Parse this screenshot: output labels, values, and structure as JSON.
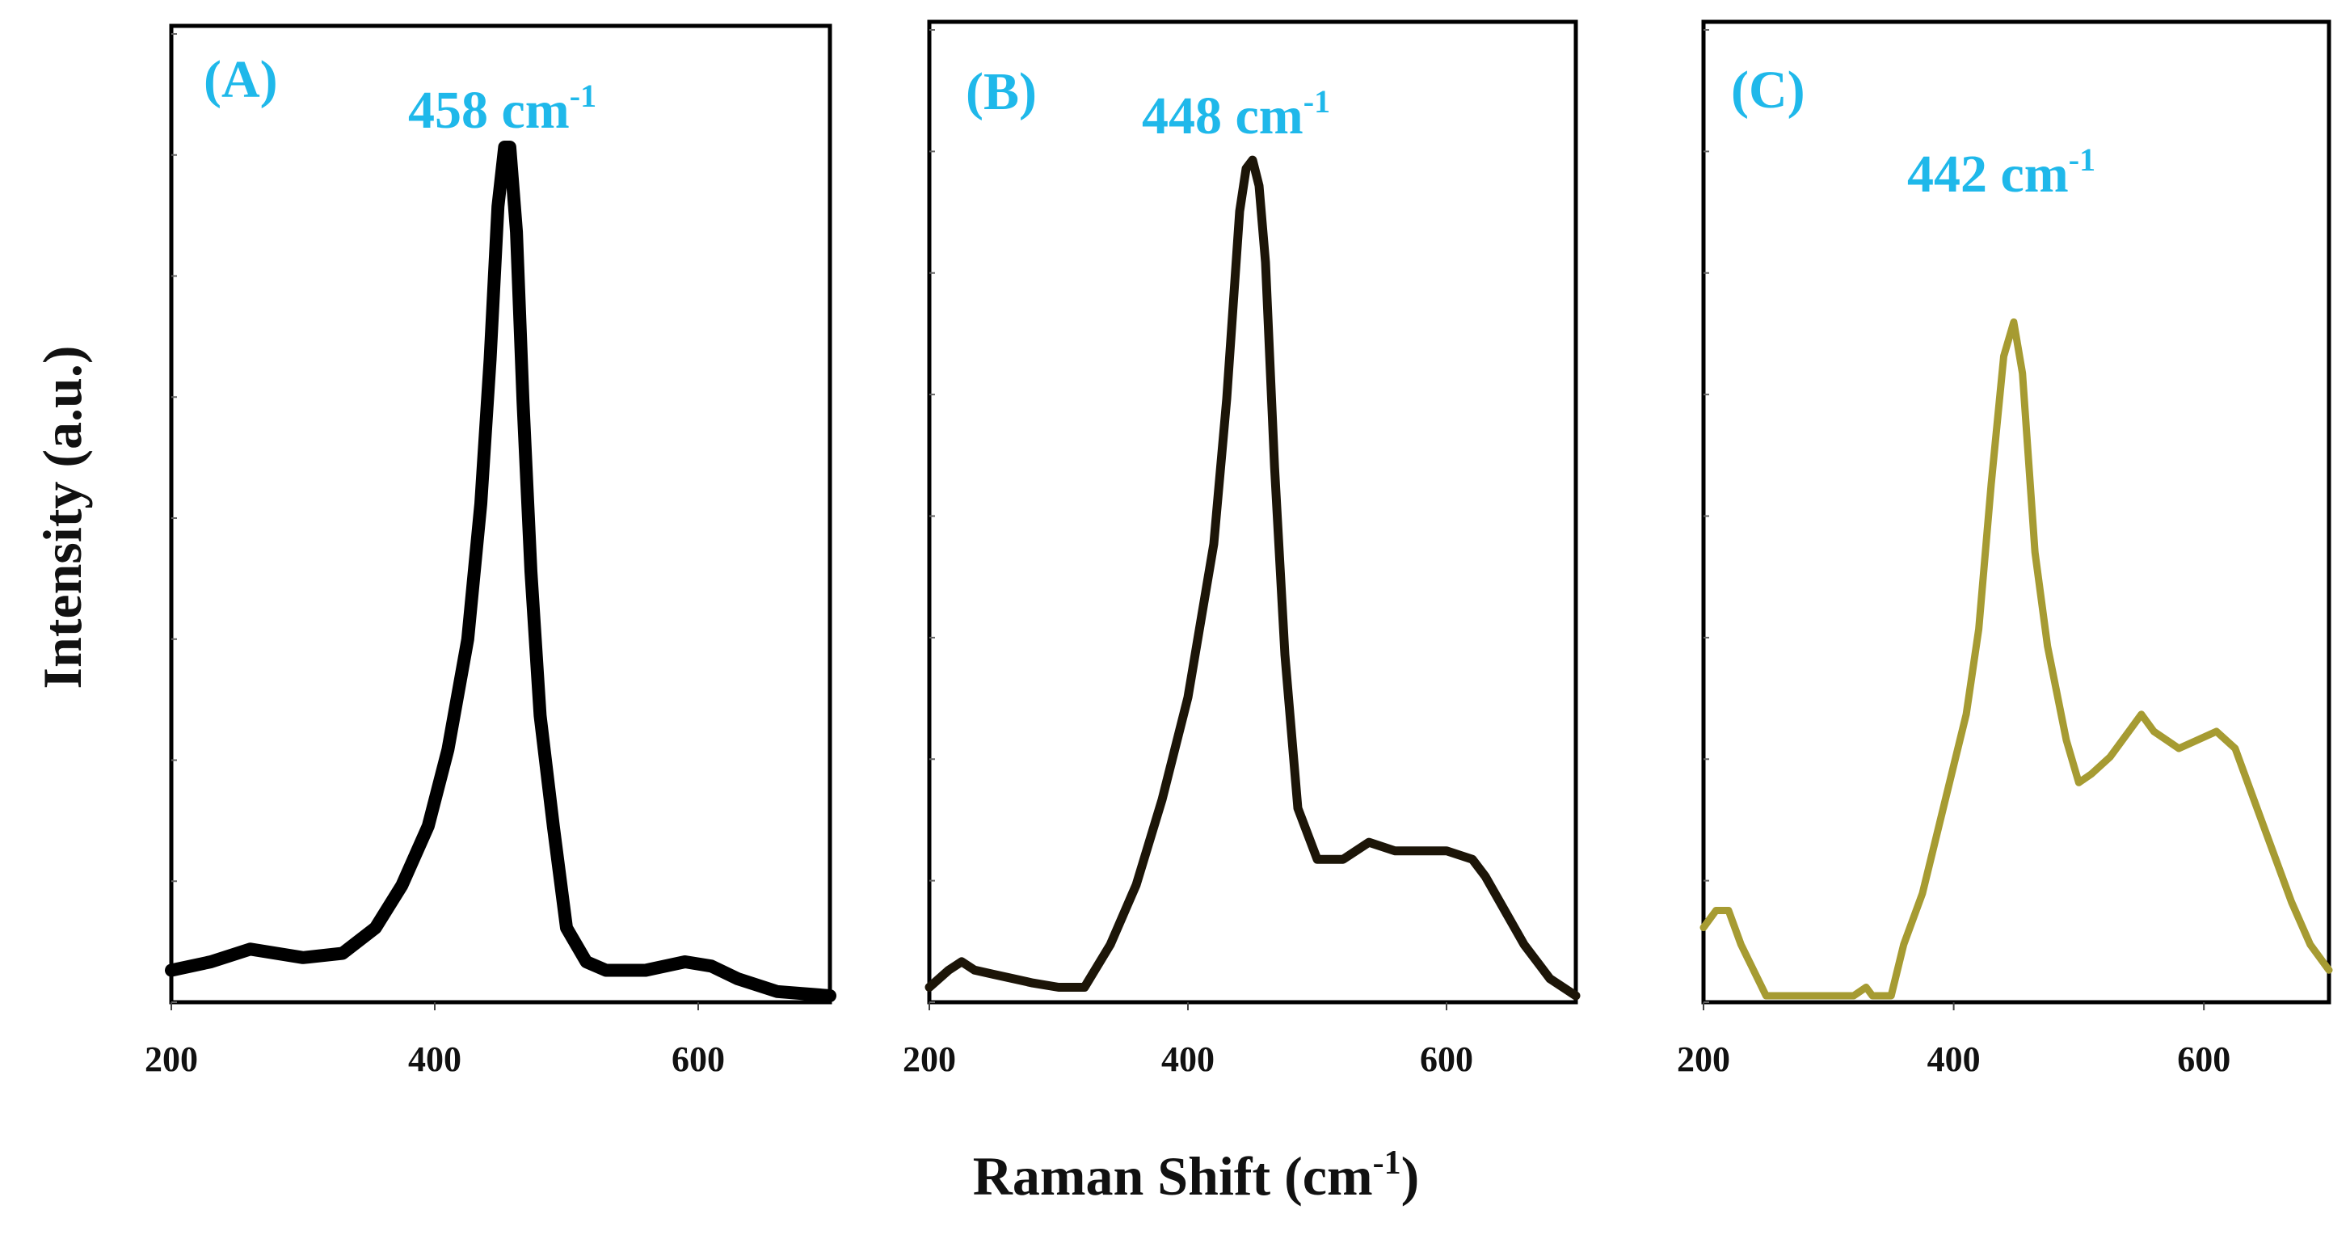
{
  "colors": {
    "label": "#1fb8ea",
    "frame": "#000000",
    "text": "#111111"
  },
  "axis_titles": {
    "ylabel": "Intensity (a.u.)",
    "xlabel_main": "Raman Shift (cm",
    "xlabel_sup": "-1",
    "xlabel_close": ")"
  },
  "chart_data": [
    {
      "type": "line",
      "panel_label": "(A)",
      "peak_value": "458 cm",
      "peak_sup": "-1",
      "xlabel": "Raman Shift (cm-1)",
      "ylabel": "Intensity (a.u.)",
      "xlim": [
        200,
        700
      ],
      "ylim": [
        0,
        1
      ],
      "xticks": [
        "200",
        "400",
        "600"
      ],
      "color": "#000000",
      "x": [
        200,
        230,
        260,
        300,
        330,
        355,
        375,
        395,
        410,
        425,
        435,
        442,
        448,
        453,
        457,
        462,
        467,
        473,
        480,
        490,
        500,
        515,
        530,
        560,
        590,
        610,
        630,
        660,
        700
      ],
      "y": [
        0.03,
        0.04,
        0.055,
        0.045,
        0.05,
        0.08,
        0.13,
        0.2,
        0.29,
        0.42,
        0.58,
        0.75,
        0.93,
        1.0,
        1.0,
        0.9,
        0.7,
        0.5,
        0.33,
        0.2,
        0.08,
        0.04,
        0.03,
        0.03,
        0.04,
        0.035,
        0.02,
        0.005,
        0.0
      ]
    },
    {
      "type": "line",
      "panel_label": "(B)",
      "peak_value": "448 cm",
      "peak_sup": "-1",
      "xlabel": "Raman Shift (cm-1)",
      "ylabel": "Intensity (a.u.)",
      "xlim": [
        200,
        700
      ],
      "ylim": [
        0,
        1
      ],
      "xticks": [
        "200",
        "400",
        "600"
      ],
      "color": "#1c1508",
      "x": [
        200,
        215,
        225,
        235,
        250,
        265,
        280,
        300,
        320,
        340,
        360,
        380,
        400,
        420,
        430,
        440,
        445,
        450,
        455,
        460,
        467,
        475,
        485,
        500,
        520,
        540,
        560,
        580,
        600,
        620,
        630,
        645,
        660,
        680,
        700
      ],
      "y": [
        0.01,
        0.03,
        0.04,
        0.03,
        0.025,
        0.02,
        0.015,
        0.01,
        0.01,
        0.06,
        0.13,
        0.23,
        0.35,
        0.53,
        0.7,
        0.92,
        0.97,
        0.98,
        0.95,
        0.86,
        0.62,
        0.4,
        0.22,
        0.16,
        0.16,
        0.18,
        0.17,
        0.17,
        0.17,
        0.16,
        0.14,
        0.1,
        0.06,
        0.02,
        0.0
      ]
    },
    {
      "type": "line",
      "panel_label": "(C)",
      "peak_value": "442 cm",
      "peak_sup": "-1",
      "xlabel": "Raman Shift (cm-1)",
      "ylabel": "Intensity (a.u.)",
      "xlim": [
        200,
        700
      ],
      "ylim": [
        0,
        1
      ],
      "xticks": [
        "200",
        "400",
        "600"
      ],
      "color": "#a69b32",
      "x": [
        200,
        210,
        220,
        230,
        240,
        250,
        260,
        280,
        300,
        320,
        330,
        335,
        340,
        350,
        360,
        375,
        390,
        400,
        410,
        420,
        430,
        440,
        448,
        455,
        465,
        475,
        490,
        500,
        510,
        525,
        540,
        550,
        560,
        570,
        580,
        595,
        610,
        625,
        640,
        655,
        670,
        685,
        700
      ],
      "y": [
        0.08,
        0.1,
        0.1,
        0.06,
        0.03,
        0.0,
        0.0,
        0.0,
        0.0,
        0.0,
        0.01,
        0.0,
        0.0,
        0.0,
        0.06,
        0.12,
        0.21,
        0.27,
        0.33,
        0.43,
        0.6,
        0.75,
        0.79,
        0.73,
        0.52,
        0.41,
        0.3,
        0.25,
        0.26,
        0.28,
        0.31,
        0.33,
        0.31,
        0.3,
        0.29,
        0.3,
        0.31,
        0.29,
        0.23,
        0.17,
        0.11,
        0.06,
        0.03
      ]
    }
  ]
}
